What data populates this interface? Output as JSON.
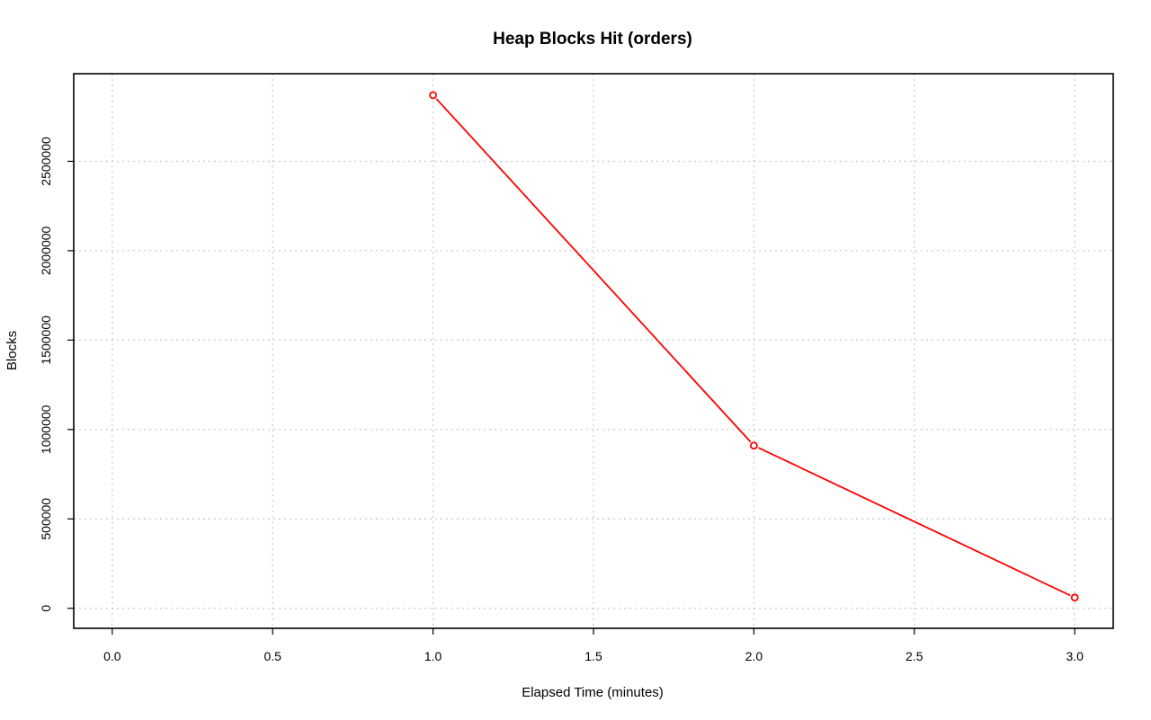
{
  "chart_data": {
    "type": "line",
    "title": "Heap Blocks Hit (orders)",
    "xlabel": "Elapsed Time (minutes)",
    "ylabel": "Blocks",
    "xlim": [
      -0.12,
      3.12
    ],
    "ylim": [
      -112000,
      2990000
    ],
    "xticks": [
      0.0,
      0.5,
      1.0,
      1.5,
      2.0,
      2.5,
      3.0
    ],
    "xtick_labels": [
      "0.0",
      "0.5",
      "1.0",
      "1.5",
      "2.0",
      "2.5",
      "3.0"
    ],
    "yticks": [
      0,
      500000,
      1000000,
      1500000,
      2000000,
      2500000
    ],
    "ytick_labels": [
      "0",
      "500000",
      "1000000",
      "1500000",
      "2000000",
      "2500000"
    ],
    "grid": true,
    "series": [
      {
        "color": "#ff0000",
        "marker": "open-circle",
        "x": [
          1.0,
          2.0,
          3.0
        ],
        "y": [
          2870000,
          910000,
          60000
        ]
      }
    ]
  }
}
